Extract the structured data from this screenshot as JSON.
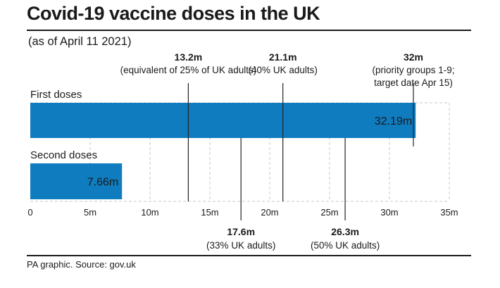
{
  "title": "Covid-19 vaccine doses in the UK",
  "subtitle": "(as of April 11 2021)",
  "source": "PA graphic. Source: gov.uk",
  "colors": {
    "bar": "#0f7cc0",
    "text": "#1a1a1a",
    "grid": "#c8c8c8",
    "bar_label": "#ffffff"
  },
  "chart_data": {
    "type": "bar",
    "orientation": "horizontal",
    "categories": [
      "First doses",
      "Second doses"
    ],
    "series": [
      {
        "values": [
          32.19,
          7.66
        ]
      }
    ],
    "value_labels": [
      "32.19m",
      "7.66m"
    ],
    "xlim": [
      0,
      35
    ],
    "x_ticks": [
      0,
      5,
      10,
      15,
      20,
      25,
      30,
      35
    ],
    "x_tick_labels": [
      "0",
      "5m",
      "10m",
      "15m",
      "20m",
      "25m",
      "30m",
      "35m"
    ],
    "grid": true,
    "markers": [
      {
        "value": 13.2,
        "label": "13.2m",
        "note": [
          "(equivalent of 25% of UK adults)"
        ],
        "position": "above"
      },
      {
        "value": 21.1,
        "label": "21.1m",
        "note": [
          "(40% UK adults)"
        ],
        "position": "above"
      },
      {
        "value": 32,
        "label": "32m",
        "note": [
          "(priority groups 1-9;",
          "target date Apr 15)"
        ],
        "position": "above"
      },
      {
        "value": 17.6,
        "label": "17.6m",
        "note": [
          "(33% UK adults)"
        ],
        "position": "below"
      },
      {
        "value": 26.3,
        "label": "26.3m",
        "note": [
          "(50% UK adults)"
        ],
        "position": "below"
      }
    ]
  }
}
